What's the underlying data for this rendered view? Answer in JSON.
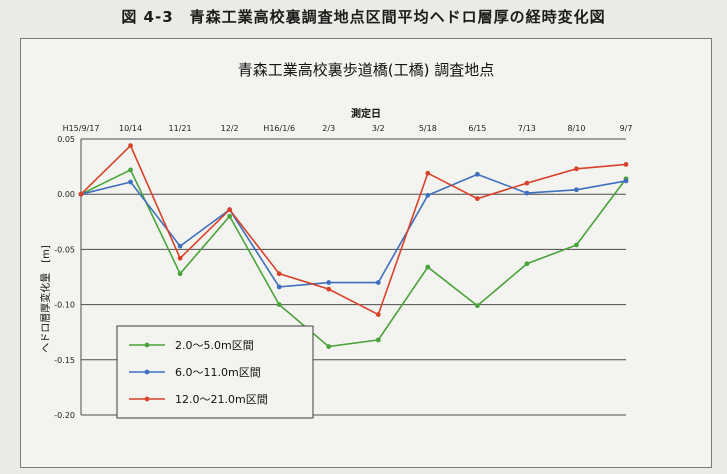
{
  "figure_caption": "図 4-3　青森工業高校裏調査地点区間平均ヘドロ層厚の経時変化図",
  "chart_data": {
    "type": "line",
    "title": "青森工業高校裏歩道橋(工橋) 調査地点",
    "xlabel": "測定日",
    "ylabel": "ヘドロ層厚変化量　[m]",
    "categories": [
      "H15/9/17",
      "10/14",
      "11/21",
      "12/2",
      "H16/1/6",
      "2/3",
      "3/2",
      "5/18",
      "6/15",
      "7/13",
      "8/10",
      "9/7"
    ],
    "ylim": [
      -0.2,
      0.05
    ],
    "yticks": [
      "0.05",
      "0.00",
      "-0.05",
      "-0.10",
      "-0.15",
      "-0.20"
    ],
    "ytick_values": [
      0.05,
      0.0,
      -0.05,
      -0.1,
      -0.15,
      -0.2
    ],
    "grid": true,
    "legend_position": "bottom-left",
    "series": [
      {
        "name": "2.0～5.0m区間",
        "color": "#4aa33a",
        "values": [
          0.0,
          0.022,
          -0.072,
          -0.02,
          -0.1,
          -0.138,
          -0.132,
          -0.066,
          -0.101,
          -0.063,
          -0.046,
          0.014
        ]
      },
      {
        "name": "6.0～11.0m区間",
        "color": "#3f6fbf",
        "values": [
          0.0,
          0.011,
          -0.047,
          -0.014,
          -0.084,
          -0.08,
          -0.08,
          -0.001,
          0.018,
          0.001,
          0.004,
          0.012
        ]
      },
      {
        "name": "12.0～21.0m区間",
        "color": "#d8422b",
        "values": [
          0.0,
          0.044,
          -0.058,
          -0.014,
          -0.072,
          -0.086,
          -0.109,
          0.019,
          -0.004,
          0.01,
          0.023,
          0.027
        ]
      }
    ]
  }
}
